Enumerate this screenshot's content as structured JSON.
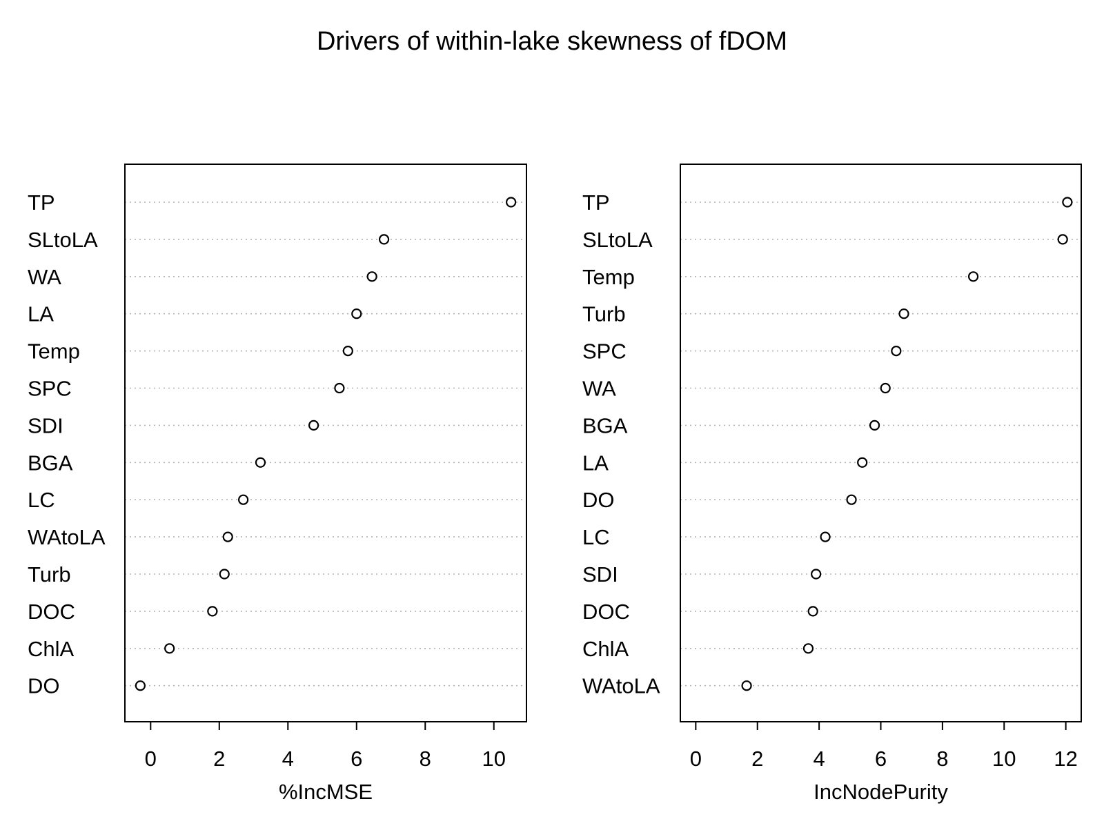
{
  "title": "Drivers of within-lake skewness of fDOM",
  "colors": {
    "background": "#ffffff",
    "points": "#000000",
    "guides": "#b3b3b3"
  },
  "chart_data": [
    {
      "type": "scatter",
      "title": "",
      "xlabel": "%IncMSE",
      "ylabel": "",
      "xlim": [
        -0.75,
        10.95
      ],
      "xticks": [
        0,
        2,
        4,
        6,
        8,
        10
      ],
      "grid": false,
      "marker": "open-circle",
      "categories": [
        "TP",
        "SLtoLA",
        "WA",
        "LA",
        "Temp",
        "SPC",
        "SDI",
        "BGA",
        "LC",
        "WAtoLA",
        "Turb",
        "DOC",
        "ChlA",
        "DO"
      ],
      "values": [
        10.5,
        6.8,
        6.45,
        6.0,
        5.75,
        5.5,
        4.75,
        3.2,
        2.7,
        2.25,
        2.15,
        1.8,
        0.55,
        -0.3
      ]
    },
    {
      "type": "scatter",
      "title": "",
      "xlabel": "IncNodePurity",
      "ylabel": "",
      "xlim": [
        -0.5,
        12.5
      ],
      "xticks": [
        0,
        2,
        4,
        6,
        8,
        10,
        12
      ],
      "grid": false,
      "marker": "open-circle",
      "categories": [
        "TP",
        "SLtoLA",
        "Temp",
        "Turb",
        "SPC",
        "WA",
        "BGA",
        "LA",
        "DO",
        "LC",
        "SDI",
        "DOC",
        "ChlA",
        "WAtoLA"
      ],
      "values": [
        12.05,
        11.9,
        9.0,
        6.75,
        6.5,
        6.15,
        5.8,
        5.4,
        5.05,
        4.2,
        3.9,
        3.8,
        3.65,
        1.65
      ]
    }
  ]
}
